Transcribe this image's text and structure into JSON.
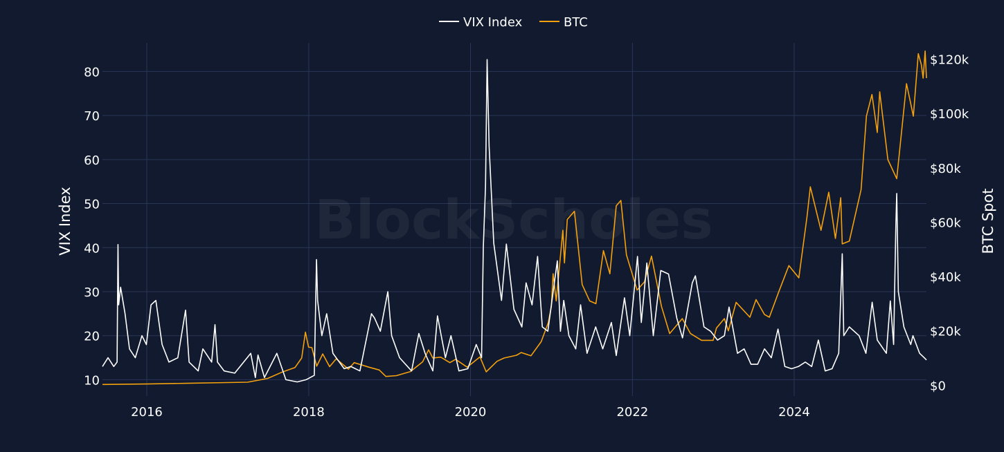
{
  "chart_data": {
    "type": "line",
    "title": "",
    "watermark": "BlockScholes",
    "legend_position": "top-center",
    "grid": true,
    "colors": {
      "background": "#111a2e",
      "grid": "#2a3657",
      "text": "#ffffff",
      "vix": "#ffffff",
      "btc": "#f5a10e"
    },
    "xaxis": {
      "range": [
        "2015-06-15",
        "2025-08-20"
      ],
      "ticks": [
        "2016",
        "2018",
        "2020",
        "2022",
        "2024"
      ]
    },
    "yaxis_left": {
      "label": "VIX Index",
      "range": [
        6.3,
        86.5
      ],
      "ticks": [
        "10",
        "20",
        "30",
        "40",
        "50",
        "60",
        "70",
        "80"
      ]
    },
    "yaxis_right": {
      "label": "BTC Spot",
      "range": [
        -4000,
        126000
      ],
      "ticks": [
        "$0",
        "$20k",
        "$40k",
        "$60k",
        "$80k",
        "$100k",
        "$120k"
      ]
    },
    "series": [
      {
        "name": "VIX Index",
        "axis": "left",
        "points": [
          [
            "2015-06-15",
            13
          ],
          [
            "2015-07-10",
            15
          ],
          [
            "2015-08-05",
            13
          ],
          [
            "2015-08-20",
            14
          ],
          [
            "2015-08-24",
            40.7
          ],
          [
            "2015-08-27",
            27
          ],
          [
            "2015-09-05",
            31
          ],
          [
            "2015-09-25",
            25
          ],
          [
            "2015-10-15",
            17
          ],
          [
            "2015-11-10",
            15
          ],
          [
            "2015-12-10",
            20
          ],
          [
            "2015-12-30",
            18
          ],
          [
            "2016-01-20",
            27
          ],
          [
            "2016-02-11",
            28
          ],
          [
            "2016-03-10",
            18
          ],
          [
            "2016-04-10",
            14
          ],
          [
            "2016-05-20",
            15
          ],
          [
            "2016-06-24",
            25.8
          ],
          [
            "2016-07-10",
            14
          ],
          [
            "2016-08-20",
            12
          ],
          [
            "2016-09-10",
            17
          ],
          [
            "2016-10-20",
            14
          ],
          [
            "2016-11-04",
            22.5
          ],
          [
            "2016-11-15",
            14
          ],
          [
            "2016-12-15",
            12
          ],
          [
            "2017-02-01",
            11.5
          ],
          [
            "2017-04-14",
            16
          ],
          [
            "2017-05-05",
            10.5
          ],
          [
            "2017-05-17",
            15.6
          ],
          [
            "2017-06-15",
            10.5
          ],
          [
            "2017-08-10",
            16
          ],
          [
            "2017-09-20",
            10
          ],
          [
            "2017-11-10",
            9.5
          ],
          [
            "2017-12-20",
            10
          ],
          [
            "2018-01-26",
            11
          ],
          [
            "2018-02-05",
            37.3
          ],
          [
            "2018-02-10",
            28
          ],
          [
            "2018-03-01",
            20
          ],
          [
            "2018-03-23",
            25
          ],
          [
            "2018-04-20",
            16
          ],
          [
            "2018-06-10",
            12.5
          ],
          [
            "2018-07-10",
            13
          ],
          [
            "2018-08-20",
            12
          ],
          [
            "2018-10-11",
            25
          ],
          [
            "2018-10-25",
            24
          ],
          [
            "2018-11-20",
            21
          ],
          [
            "2018-12-24",
            30
          ],
          [
            "2019-01-10",
            20
          ],
          [
            "2019-02-15",
            15
          ],
          [
            "2019-04-10",
            12
          ],
          [
            "2019-05-13",
            20.5
          ],
          [
            "2019-06-10",
            16
          ],
          [
            "2019-07-15",
            12
          ],
          [
            "2019-08-05",
            24.5
          ],
          [
            "2019-09-10",
            15
          ],
          [
            "2019-10-05",
            20
          ],
          [
            "2019-11-10",
            12
          ],
          [
            "2019-12-20",
            12.5
          ],
          [
            "2020-01-27",
            18
          ],
          [
            "2020-02-20",
            15
          ],
          [
            "2020-02-28",
            40
          ],
          [
            "2020-03-09",
            54
          ],
          [
            "2020-03-16",
            82.7
          ],
          [
            "2020-03-25",
            63
          ],
          [
            "2020-04-15",
            41
          ],
          [
            "2020-05-20",
            28
          ],
          [
            "2020-06-11",
            40.8
          ],
          [
            "2020-07-15",
            26
          ],
          [
            "2020-08-20",
            22
          ],
          [
            "2020-09-08",
            32
          ],
          [
            "2020-10-05",
            27
          ],
          [
            "2020-10-30",
            38
          ],
          [
            "2020-11-20",
            22
          ],
          [
            "2020-12-15",
            21
          ],
          [
            "2021-01-27",
            37
          ],
          [
            "2021-02-10",
            21
          ],
          [
            "2021-02-25",
            28
          ],
          [
            "2021-03-20",
            20
          ],
          [
            "2021-04-20",
            17
          ],
          [
            "2021-05-12",
            27
          ],
          [
            "2021-06-10",
            16
          ],
          [
            "2021-07-19",
            22
          ],
          [
            "2021-08-20",
            17
          ],
          [
            "2021-09-28",
            23
          ],
          [
            "2021-10-20",
            15.5
          ],
          [
            "2021-11-26",
            28.6
          ],
          [
            "2021-12-20",
            20
          ],
          [
            "2022-01-24",
            38
          ],
          [
            "2022-02-10",
            23
          ],
          [
            "2022-03-07",
            36.5
          ],
          [
            "2022-04-05",
            20
          ],
          [
            "2022-05-09",
            34.8
          ],
          [
            "2022-06-13",
            34
          ],
          [
            "2022-07-20",
            24
          ],
          [
            "2022-08-15",
            19.5
          ],
          [
            "2022-09-28",
            32
          ],
          [
            "2022-10-12",
            33.6
          ],
          [
            "2022-11-20",
            22
          ],
          [
            "2022-12-20",
            21
          ],
          [
            "2023-01-20",
            19
          ],
          [
            "2023-02-20",
            20
          ],
          [
            "2023-03-13",
            26.5
          ],
          [
            "2023-04-20",
            16
          ],
          [
            "2023-05-20",
            17
          ],
          [
            "2023-06-20",
            13.5
          ],
          [
            "2023-07-20",
            13.5
          ],
          [
            "2023-08-20",
            17
          ],
          [
            "2023-09-20",
            15
          ],
          [
            "2023-10-20",
            21.5
          ],
          [
            "2023-11-20",
            13
          ],
          [
            "2023-12-20",
            12.5
          ],
          [
            "2024-01-20",
            13
          ],
          [
            "2024-02-20",
            14
          ],
          [
            "2024-03-20",
            13
          ],
          [
            "2024-04-19",
            19
          ],
          [
            "2024-05-20",
            12
          ],
          [
            "2024-06-20",
            12.5
          ],
          [
            "2024-07-20",
            16
          ],
          [
            "2024-08-05",
            38.6
          ],
          [
            "2024-08-12",
            20
          ],
          [
            "2024-09-06",
            22
          ],
          [
            "2024-10-20",
            20
          ],
          [
            "2024-11-20",
            16
          ],
          [
            "2024-12-18",
            27.6
          ],
          [
            "2025-01-10",
            19
          ],
          [
            "2025-02-20",
            16
          ],
          [
            "2025-03-10",
            27.9
          ],
          [
            "2025-03-25",
            18
          ],
          [
            "2025-04-04",
            45
          ],
          [
            "2025-04-08",
            52.3
          ],
          [
            "2025-04-15",
            30
          ],
          [
            "2025-05-10",
            22
          ],
          [
            "2025-06-10",
            18
          ],
          [
            "2025-06-20",
            20
          ],
          [
            "2025-07-20",
            16
          ],
          [
            "2025-08-10",
            15
          ],
          [
            "2025-08-20",
            14.5
          ]
        ]
      },
      {
        "name": "BTC",
        "axis": "right",
        "points": [
          [
            "2015-06-15",
            240
          ],
          [
            "2015-12-31",
            430
          ],
          [
            "2016-06-30",
            670
          ],
          [
            "2016-12-31",
            960
          ],
          [
            "2017-03-31",
            1080
          ],
          [
            "2017-06-30",
            2500
          ],
          [
            "2017-08-31",
            4700
          ],
          [
            "2017-10-31",
            6500
          ],
          [
            "2017-11-30",
            10000
          ],
          [
            "2017-12-17",
            19500
          ],
          [
            "2017-12-31",
            14000
          ],
          [
            "2018-01-15",
            13800
          ],
          [
            "2018-02-06",
            7000
          ],
          [
            "2018-03-05",
            11500
          ],
          [
            "2018-04-05",
            6800
          ],
          [
            "2018-05-05",
            9700
          ],
          [
            "2018-06-29",
            5900
          ],
          [
            "2018-07-25",
            8300
          ],
          [
            "2018-09-30",
            6600
          ],
          [
            "2018-11-15",
            5600
          ],
          [
            "2018-12-15",
            3200
          ],
          [
            "2019-02-01",
            3500
          ],
          [
            "2019-04-05",
            5000
          ],
          [
            "2019-05-30",
            8600
          ],
          [
            "2019-06-26",
            13000
          ],
          [
            "2019-07-15",
            10000
          ],
          [
            "2019-08-20",
            10300
          ],
          [
            "2019-09-30",
            8300
          ],
          [
            "2019-10-26",
            9500
          ],
          [
            "2019-12-17",
            6600
          ],
          [
            "2020-02-13",
            10400
          ],
          [
            "2020-03-12",
            4900
          ],
          [
            "2020-04-30",
            8800
          ],
          [
            "2020-06-01",
            10000
          ],
          [
            "2020-07-27",
            11000
          ],
          [
            "2020-08-17",
            12000
          ],
          [
            "2020-09-30",
            10800
          ],
          [
            "2020-11-15",
            16000
          ],
          [
            "2020-12-17",
            23000
          ],
          [
            "2020-12-31",
            29000
          ],
          [
            "2021-01-08",
            41000
          ],
          [
            "2021-01-22",
            31000
          ],
          [
            "2021-02-21",
            57000
          ],
          [
            "2021-02-28",
            45000
          ],
          [
            "2021-03-13",
            61000
          ],
          [
            "2021-04-14",
            64000
          ],
          [
            "2021-05-19",
            37000
          ],
          [
            "2021-06-22",
            31000
          ],
          [
            "2021-07-20",
            30000
          ],
          [
            "2021-08-23",
            49500
          ],
          [
            "2021-09-21",
            41000
          ],
          [
            "2021-10-20",
            66000
          ],
          [
            "2021-11-10",
            68000
          ],
          [
            "2021-12-05",
            48000
          ],
          [
            "2022-01-22",
            35000
          ],
          [
            "2022-02-24",
            38000
          ],
          [
            "2022-03-28",
            47500
          ],
          [
            "2022-05-12",
            29000
          ],
          [
            "2022-06-18",
            19000
          ],
          [
            "2022-08-14",
            24500
          ],
          [
            "2022-09-20",
            19000
          ],
          [
            "2022-11-09",
            16500
          ],
          [
            "2022-12-31",
            16500
          ],
          [
            "2023-01-15",
            21000
          ],
          [
            "2023-02-20",
            24500
          ],
          [
            "2023-03-10",
            20000
          ],
          [
            "2023-04-14",
            30500
          ],
          [
            "2023-06-15",
            25000
          ],
          [
            "2023-07-13",
            31500
          ],
          [
            "2023-08-20",
            26000
          ],
          [
            "2023-09-11",
            25000
          ],
          [
            "2023-10-24",
            34500
          ],
          [
            "2023-12-08",
            44000
          ],
          [
            "2024-01-22",
            39500
          ],
          [
            "2024-02-28",
            62000
          ],
          [
            "2024-03-14",
            73000
          ],
          [
            "2024-05-01",
            57000
          ],
          [
            "2024-06-05",
            71000
          ],
          [
            "2024-07-05",
            54000
          ],
          [
            "2024-07-29",
            69000
          ],
          [
            "2024-08-05",
            52000
          ],
          [
            "2024-09-06",
            53000
          ],
          [
            "2024-10-29",
            72000
          ],
          [
            "2024-11-22",
            99000
          ],
          [
            "2024-12-17",
            107000
          ],
          [
            "2025-01-10",
            93000
          ],
          [
            "2025-01-21",
            108000
          ],
          [
            "2025-02-27",
            83000
          ],
          [
            "2025-04-08",
            76000
          ],
          [
            "2025-05-22",
            111000
          ],
          [
            "2025-06-22",
            99000
          ],
          [
            "2025-07-14",
            122000
          ],
          [
            "2025-07-28",
            118000
          ],
          [
            "2025-08-05",
            113000
          ],
          [
            "2025-08-14",
            123000
          ],
          [
            "2025-08-20",
            113000
          ]
        ]
      }
    ]
  }
}
